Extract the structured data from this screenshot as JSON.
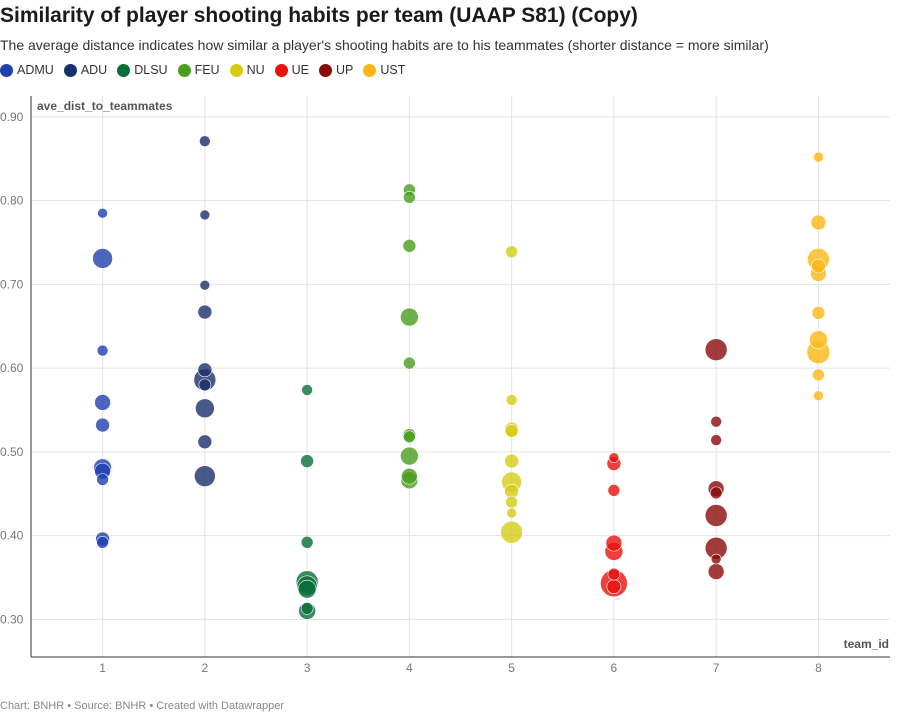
{
  "chart_data": {
    "type": "scatter",
    "title": "Similarity of player shooting habits per team (UAAP S81) (Copy)",
    "subtitle": "The average distance indicates how similar a player's shooting habits are to his teammates (shorter distance = more similar)",
    "xlabel": "team_id",
    "ylabel": "ave_dist_to_teammates",
    "xlim": [
      0.3,
      8.7
    ],
    "ylim": [
      0.255,
      0.925
    ],
    "xticks": [
      1,
      2,
      3,
      4,
      5,
      6,
      7,
      8
    ],
    "yticks": [
      0.3,
      0.4,
      0.5,
      0.6,
      0.7,
      0.8,
      0.9
    ],
    "ytick_labels": [
      "0.30",
      "0.40",
      "0.50",
      "0.60",
      "0.70",
      "0.80",
      "0.90"
    ],
    "grid": true,
    "legend_position": "top-left",
    "series": [
      {
        "name": "ADMU",
        "color": "#1f40b0",
        "points": [
          {
            "x": 1,
            "y": 0.785,
            "s": 5
          },
          {
            "x": 1,
            "y": 0.731,
            "s": 10
          },
          {
            "x": 1,
            "y": 0.621,
            "s": 5.5
          },
          {
            "x": 1,
            "y": 0.559,
            "s": 8
          },
          {
            "x": 1,
            "y": 0.532,
            "s": 7
          },
          {
            "x": 1,
            "y": 0.481,
            "s": 9
          },
          {
            "x": 1,
            "y": 0.477,
            "s": 8
          },
          {
            "x": 1,
            "y": 0.467,
            "s": 6
          },
          {
            "x": 1,
            "y": 0.396,
            "s": 7
          },
          {
            "x": 1,
            "y": 0.392,
            "s": 6
          }
        ]
      },
      {
        "name": "ADU",
        "color": "#1a3069",
        "points": [
          {
            "x": 2,
            "y": 0.871,
            "s": 5.5
          },
          {
            "x": 2,
            "y": 0.783,
            "s": 5
          },
          {
            "x": 2,
            "y": 0.699,
            "s": 5
          },
          {
            "x": 2,
            "y": 0.667,
            "s": 7
          },
          {
            "x": 2,
            "y": 0.598,
            "s": 7
          },
          {
            "x": 2,
            "y": 0.586,
            "s": 11
          },
          {
            "x": 2,
            "y": 0.58,
            "s": 6
          },
          {
            "x": 2,
            "y": 0.552,
            "s": 9.5
          },
          {
            "x": 2,
            "y": 0.512,
            "s": 7
          },
          {
            "x": 2,
            "y": 0.471,
            "s": 10.5
          }
        ]
      },
      {
        "name": "DLSU",
        "color": "#0a6e3a",
        "points": [
          {
            "x": 3,
            "y": 0.574,
            "s": 5.5
          },
          {
            "x": 3,
            "y": 0.489,
            "s": 6.5
          },
          {
            "x": 3,
            "y": 0.392,
            "s": 6
          },
          {
            "x": 3,
            "y": 0.345,
            "s": 11
          },
          {
            "x": 3,
            "y": 0.34,
            "s": 10
          },
          {
            "x": 3,
            "y": 0.336,
            "s": 9
          },
          {
            "x": 3,
            "y": 0.313,
            "s": 6
          },
          {
            "x": 3,
            "y": 0.31,
            "s": 8.5
          }
        ]
      },
      {
        "name": "FEU",
        "color": "#4a9e1e",
        "points": [
          {
            "x": 4,
            "y": 0.813,
            "s": 6
          },
          {
            "x": 4,
            "y": 0.804,
            "s": 6
          },
          {
            "x": 4,
            "y": 0.746,
            "s": 6.5
          },
          {
            "x": 4,
            "y": 0.661,
            "s": 9
          },
          {
            "x": 4,
            "y": 0.606,
            "s": 6
          },
          {
            "x": 4,
            "y": 0.52,
            "s": 6.5
          },
          {
            "x": 4,
            "y": 0.518,
            "s": 6
          },
          {
            "x": 4,
            "y": 0.495,
            "s": 9
          },
          {
            "x": 4,
            "y": 0.471,
            "s": 8
          },
          {
            "x": 4,
            "y": 0.466,
            "s": 8.5
          }
        ]
      },
      {
        "name": "NU",
        "color": "#d4cc16",
        "points": [
          {
            "x": 5,
            "y": 0.739,
            "s": 6
          },
          {
            "x": 5,
            "y": 0.562,
            "s": 5.5
          },
          {
            "x": 5,
            "y": 0.527,
            "s": 7
          },
          {
            "x": 5,
            "y": 0.525,
            "s": 6.5
          },
          {
            "x": 5,
            "y": 0.489,
            "s": 7
          },
          {
            "x": 5,
            "y": 0.464,
            "s": 10
          },
          {
            "x": 5,
            "y": 0.453,
            "s": 7
          },
          {
            "x": 5,
            "y": 0.44,
            "s": 6
          },
          {
            "x": 5,
            "y": 0.427,
            "s": 5
          },
          {
            "x": 5,
            "y": 0.404,
            "s": 11
          }
        ]
      },
      {
        "name": "UE",
        "color": "#e8110e",
        "points": [
          {
            "x": 6,
            "y": 0.493,
            "s": 5
          },
          {
            "x": 6,
            "y": 0.486,
            "s": 7
          },
          {
            "x": 6,
            "y": 0.454,
            "s": 6
          },
          {
            "x": 6,
            "y": 0.391,
            "s": 8
          },
          {
            "x": 6,
            "y": 0.381,
            "s": 9
          },
          {
            "x": 6,
            "y": 0.354,
            "s": 6
          },
          {
            "x": 6,
            "y": 0.343,
            "s": 13.5
          },
          {
            "x": 6,
            "y": 0.339,
            "s": 7
          }
        ]
      },
      {
        "name": "UP",
        "color": "#8b0a0a",
        "points": [
          {
            "x": 7,
            "y": 0.622,
            "s": 11
          },
          {
            "x": 7,
            "y": 0.536,
            "s": 5.5
          },
          {
            "x": 7,
            "y": 0.514,
            "s": 5.5
          },
          {
            "x": 7,
            "y": 0.456,
            "s": 8
          },
          {
            "x": 7,
            "y": 0.451,
            "s": 6
          },
          {
            "x": 7,
            "y": 0.424,
            "s": 11
          },
          {
            "x": 7,
            "y": 0.385,
            "s": 11
          },
          {
            "x": 7,
            "y": 0.372,
            "s": 5
          },
          {
            "x": 7,
            "y": 0.357,
            "s": 8
          }
        ]
      },
      {
        "name": "UST",
        "color": "#fbb615",
        "points": [
          {
            "x": 8,
            "y": 0.852,
            "s": 5
          },
          {
            "x": 8,
            "y": 0.774,
            "s": 7.5
          },
          {
            "x": 8,
            "y": 0.73,
            "s": 11
          },
          {
            "x": 8,
            "y": 0.722,
            "s": 7
          },
          {
            "x": 8,
            "y": 0.713,
            "s": 8
          },
          {
            "x": 8,
            "y": 0.666,
            "s": 6.5
          },
          {
            "x": 8,
            "y": 0.634,
            "s": 9
          },
          {
            "x": 8,
            "y": 0.619,
            "s": 11.5
          },
          {
            "x": 8,
            "y": 0.592,
            "s": 6
          },
          {
            "x": 8,
            "y": 0.567,
            "s": 5
          }
        ]
      }
    ]
  },
  "footer": "Chart: BNHR • Source: BNHR • Created with Datawrapper"
}
